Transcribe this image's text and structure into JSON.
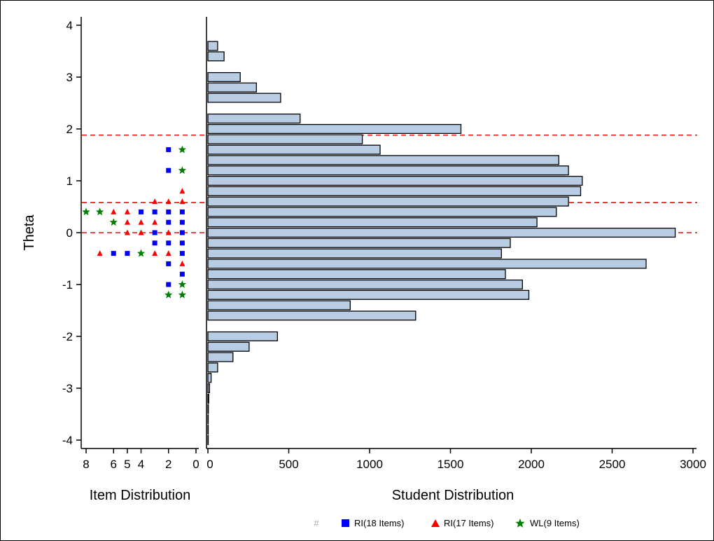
{
  "chart_data": [
    {
      "type": "scatter",
      "ylabel": "Theta",
      "xlabel": "Item Distribution",
      "xlim": [
        0,
        9
      ],
      "ylim": [
        -4.2,
        4.2
      ],
      "x_ticks": [
        8,
        6,
        5,
        4,
        2,
        0
      ],
      "x_tick_labels": [
        "8",
        "6",
        "5",
        "4",
        "2",
        "0"
      ],
      "y_ticks": [
        4,
        3,
        2,
        1,
        0,
        -1,
        -2,
        -3,
        -4
      ],
      "y_tick_labels": [
        "4",
        "3",
        "2",
        "1",
        "0",
        "-1",
        "-2",
        "-3",
        "-4"
      ],
      "x_reversed": true,
      "series": [
        {
          "name": "RI(18 Items)",
          "color": "#0000ff",
          "marker": "square",
          "points": [
            {
              "x": 2,
              "y": 1.6
            },
            {
              "x": 2,
              "y": 1.2
            },
            {
              "x": 4,
              "y": 0.4
            },
            {
              "x": 3,
              "y": 0.4
            },
            {
              "x": 2,
              "y": 0.4
            },
            {
              "x": 1,
              "y": 0.4
            },
            {
              "x": 2,
              "y": 0.2
            },
            {
              "x": 1,
              "y": 0.2
            },
            {
              "x": 3,
              "y": 0.0
            },
            {
              "x": 1,
              "y": 0.0
            },
            {
              "x": 3,
              "y": -0.2
            },
            {
              "x": 2,
              "y": -0.2
            },
            {
              "x": 1,
              "y": -0.2
            },
            {
              "x": 6,
              "y": -0.4
            },
            {
              "x": 5,
              "y": -0.4
            },
            {
              "x": 1,
              "y": -0.4
            },
            {
              "x": 2,
              "y": -0.6
            },
            {
              "x": 1,
              "y": -0.8
            },
            {
              "x": 2,
              "y": -1.0
            }
          ]
        },
        {
          "name": "RI(17 Items)",
          "color": "#ff0000",
          "marker": "triangle",
          "points": [
            {
              "x": 1,
              "y": 0.8
            },
            {
              "x": 3,
              "y": 0.6
            },
            {
              "x": 2,
              "y": 0.6
            },
            {
              "x": 1,
              "y": 0.6
            },
            {
              "x": 6,
              "y": 0.4
            },
            {
              "x": 5,
              "y": 0.4
            },
            {
              "x": 5,
              "y": 0.2
            },
            {
              "x": 4,
              "y": 0.2
            },
            {
              "x": 3,
              "y": 0.2
            },
            {
              "x": 5,
              "y": 0.0
            },
            {
              "x": 4,
              "y": 0.0
            },
            {
              "x": 2,
              "y": 0.0
            },
            {
              "x": 7,
              "y": -0.4
            },
            {
              "x": 3,
              "y": -0.4
            },
            {
              "x": 2,
              "y": -0.4
            },
            {
              "x": 1,
              "y": -0.6
            }
          ]
        },
        {
          "name": "WL(9 Items)",
          "color": "#008000",
          "marker": "star",
          "points": [
            {
              "x": 1,
              "y": 1.6
            },
            {
              "x": 1,
              "y": 1.2
            },
            {
              "x": 8,
              "y": 0.4
            },
            {
              "x": 7,
              "y": 0.4
            },
            {
              "x": 6,
              "y": 0.2
            },
            {
              "x": 4,
              "y": -0.4
            },
            {
              "x": 1,
              "y": -1.0
            },
            {
              "x": 2,
              "y": -1.2
            },
            {
              "x": 1,
              "y": -1.2
            }
          ]
        }
      ]
    },
    {
      "type": "bar",
      "orientation": "horizontal",
      "xlabel": "Student Distribution",
      "xlim": [
        0,
        3000
      ],
      "x_ticks": [
        0,
        500,
        1000,
        1500,
        2000,
        2500,
        3000
      ],
      "x_tick_labels": [
        "0",
        "500",
        "1000",
        "1500",
        "2000",
        "2500",
        "3000"
      ],
      "ylim": [
        -4.2,
        4.2
      ],
      "bar_fill": "#b8cce4",
      "bins": [
        {
          "y": 3.6,
          "value": 60
        },
        {
          "y": 3.4,
          "value": 100
        },
        {
          "y": 3.0,
          "value": 200
        },
        {
          "y": 2.8,
          "value": 300
        },
        {
          "y": 2.6,
          "value": 450
        },
        {
          "y": 2.2,
          "value": 570
        },
        {
          "y": 2.0,
          "value": 1565
        },
        {
          "y": 1.8,
          "value": 955
        },
        {
          "y": 1.6,
          "value": 1065
        },
        {
          "y": 1.4,
          "value": 2170
        },
        {
          "y": 1.2,
          "value": 2230
        },
        {
          "y": 1.0,
          "value": 2315
        },
        {
          "y": 0.8,
          "value": 2305
        },
        {
          "y": 0.6,
          "value": 2230
        },
        {
          "y": 0.4,
          "value": 2155
        },
        {
          "y": 0.2,
          "value": 2035
        },
        {
          "y": 0.0,
          "value": 2890
        },
        {
          "y": -0.2,
          "value": 1870
        },
        {
          "y": -0.4,
          "value": 1815
        },
        {
          "y": -0.6,
          "value": 2710
        },
        {
          "y": -0.8,
          "value": 1840
        },
        {
          "y": -1.0,
          "value": 1945
        },
        {
          "y": -1.2,
          "value": 1985
        },
        {
          "y": -1.4,
          "value": 880
        },
        {
          "y": -1.6,
          "value": 1285
        },
        {
          "y": -2.0,
          "value": 430
        },
        {
          "y": -2.2,
          "value": 255
        },
        {
          "y": -2.4,
          "value": 155
        },
        {
          "y": -2.6,
          "value": 60
        },
        {
          "y": -2.8,
          "value": 20
        },
        {
          "y": -3.0,
          "value": 10
        },
        {
          "y": -3.2,
          "value": 5
        },
        {
          "y": -3.4,
          "value": 3
        },
        {
          "y": -3.6,
          "value": 2
        },
        {
          "y": -3.8,
          "value": 2
        },
        {
          "y": -4.0,
          "value": 1
        }
      ],
      "reference_lines": {
        "y": [
          1.88,
          0.58,
          0.0
        ],
        "color": "#ff0000",
        "style": "dashed"
      }
    }
  ],
  "legend": {
    "placement": "bottom",
    "hash_symbol": "#",
    "items": [
      {
        "label": "RI(18 Items)",
        "marker": "square",
        "color": "#0000ff"
      },
      {
        "label": "RI(17 Items)",
        "marker": "triangle",
        "color": "#ff0000"
      },
      {
        "label": "WL(9 Items)",
        "marker": "star",
        "color": "#008000"
      }
    ]
  }
}
